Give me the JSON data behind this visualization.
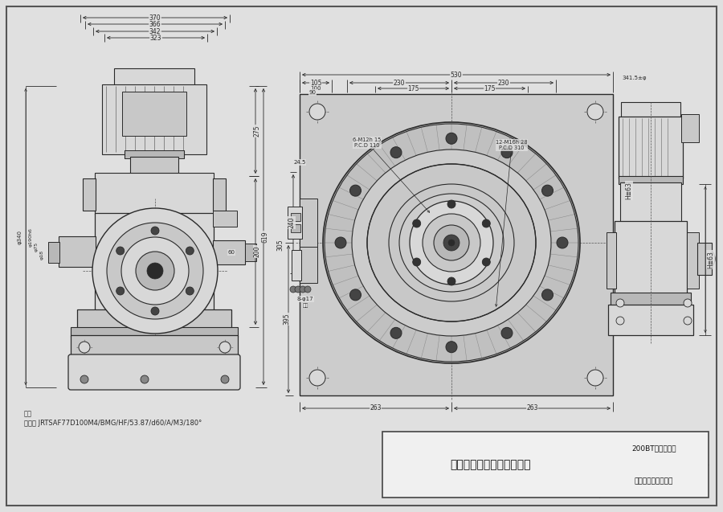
{
  "bg_color": "#e0e0e0",
  "line_color": "#2a2a2a",
  "dim_color": "#2a2a2a",
  "fill_light": "#d8d8d8",
  "fill_mid": "#c8c8c8",
  "fill_dark": "#b8b8b8",
  "fill_white": "#f0f0f0",
  "company": "上海圣盾机械设备有限公司",
  "model_top": "200BT小轴重载型",
  "model_bot": "圆住系列凸轮分割器",
  "note_title": "备注",
  "note_motor": "马达： JRTSAF77D100M4/BMG/HF/53.87/d60/A/M3/180°",
  "dim_370": "370",
  "dim_366": "366",
  "dim_342": "342",
  "dim_323": "323",
  "dim_275": "275",
  "dim_619": "619",
  "dim_200": "200",
  "dim_60": "60",
  "dim_d340": "φ340",
  "dim_d190": "φ190h6",
  "dim_d75": "φ75",
  "dim_d18": "φ18",
  "dim_530": "530",
  "dim_105": "105",
  "dim_100": "100",
  "dim_90": "90",
  "dim_230": "230",
  "dim_175": "175",
  "dim_395": "395",
  "dim_240": "240",
  "dim_305": "305",
  "dim_245": "24.5",
  "dim_263": "263",
  "dim_d17": "8-φ17",
  "dim_3415": "341.5±φ",
  "dim_h63": "H≣63",
  "dim_6holes": "6-M12h 15\nP.C.D 110",
  "dim_12holes": "12-M16h 28\nP.C.D 310"
}
